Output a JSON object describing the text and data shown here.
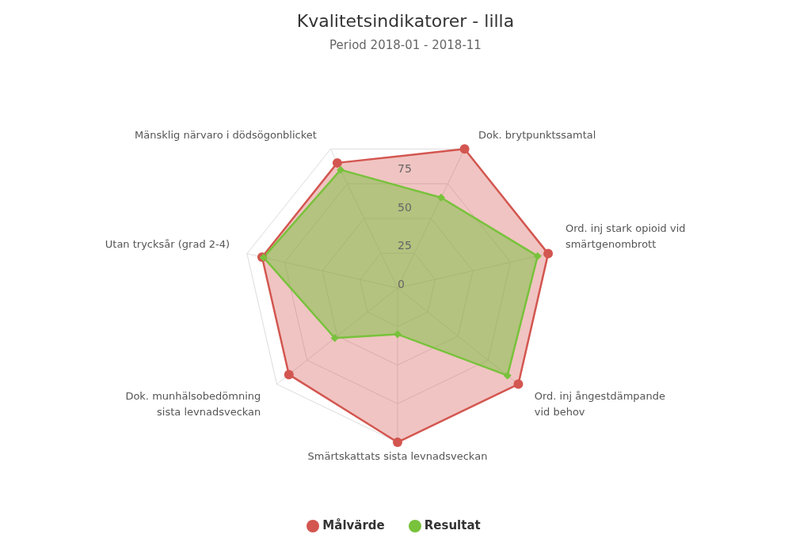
{
  "chart_data": {
    "type": "radar",
    "title": "Kvalitetsindikatorer - lilla",
    "subtitle": "Period 2018-01 - 2018-11",
    "categories": [
      "Dok. brytpunktssamtal",
      "Ord. inj stark opioid vid smärtgenombrott",
      "Ord. inj ångestdämpande vid behov",
      "Smärtskattats sista levnadsveckan",
      "Dok. munhälsobedömning sista levnadsveckan",
      "Utan trycksår (grad 2-4)",
      "Mänsklig närvaro i dödsögonblicket"
    ],
    "series": [
      {
        "name": "Målvärde",
        "color": "#d35650",
        "marker": "circle",
        "values": [
          100,
          100,
          100,
          100,
          90,
          90,
          90
        ]
      },
      {
        "name": "Resultat",
        "color": "#78c23c",
        "marker": "diamond",
        "values": [
          65,
          93,
          91,
          30,
          52,
          89,
          85
        ]
      }
    ],
    "ylim": [
      0,
      100
    ],
    "yticks": [
      0,
      25,
      50,
      75
    ],
    "grid": true,
    "legend": "bottom"
  }
}
